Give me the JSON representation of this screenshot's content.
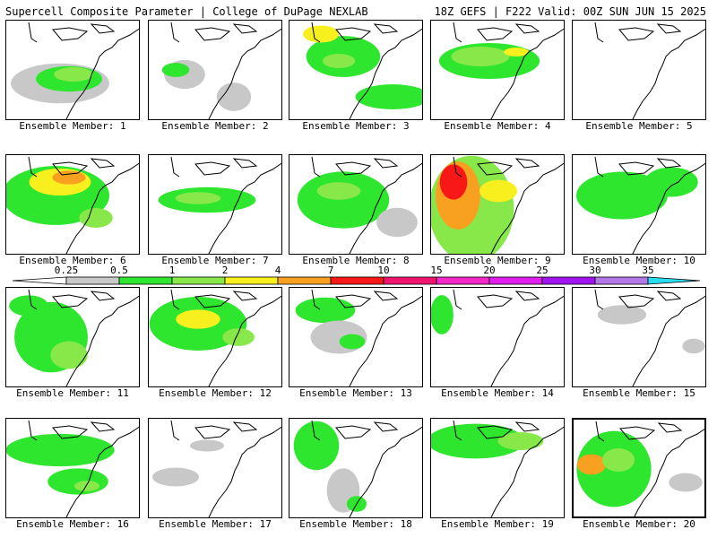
{
  "header": {
    "title": "Supercell Composite Parameter | College of DuPage NEXLAB",
    "run_info": "18Z GEFS | F222 Valid: 00Z SUN JUN 15 2025"
  },
  "members": [
    {
      "label": "Ensemble Member: 1"
    },
    {
      "label": "Ensemble Member: 2"
    },
    {
      "label": "Ensemble Member: 3"
    },
    {
      "label": "Ensemble Member: 4"
    },
    {
      "label": "Ensemble Member: 5"
    },
    {
      "label": "Ensemble Member: 6"
    },
    {
      "label": "Ensemble Member: 7"
    },
    {
      "label": "Ensemble Member: 8"
    },
    {
      "label": "Ensemble Member: 9"
    },
    {
      "label": "Ensemble Member: 10"
    },
    {
      "label": "Ensemble Member: 11"
    },
    {
      "label": "Ensemble Member: 12"
    },
    {
      "label": "Ensemble Member: 13"
    },
    {
      "label": "Ensemble Member: 14"
    },
    {
      "label": "Ensemble Member: 15"
    },
    {
      "label": "Ensemble Member: 16"
    },
    {
      "label": "Ensemble Member: 17"
    },
    {
      "label": "Ensemble Member: 18"
    },
    {
      "label": "Ensemble Member: 19"
    },
    {
      "label": "Ensemble Member: 20"
    }
  ],
  "colorbar": {
    "ticks": [
      "0.25",
      "0.5",
      "1",
      "2",
      "4",
      "7",
      "10",
      "15",
      "20",
      "25",
      "30",
      "35"
    ],
    "colors": [
      "#c8c8c8",
      "#2ee62e",
      "#88e84a",
      "#f8f01e",
      "#f8a020",
      "#f81818",
      "#f0146e",
      "#f428c8",
      "#e01ef0",
      "#a014f0",
      "#b478e6",
      "#28dcf0"
    ]
  }
}
